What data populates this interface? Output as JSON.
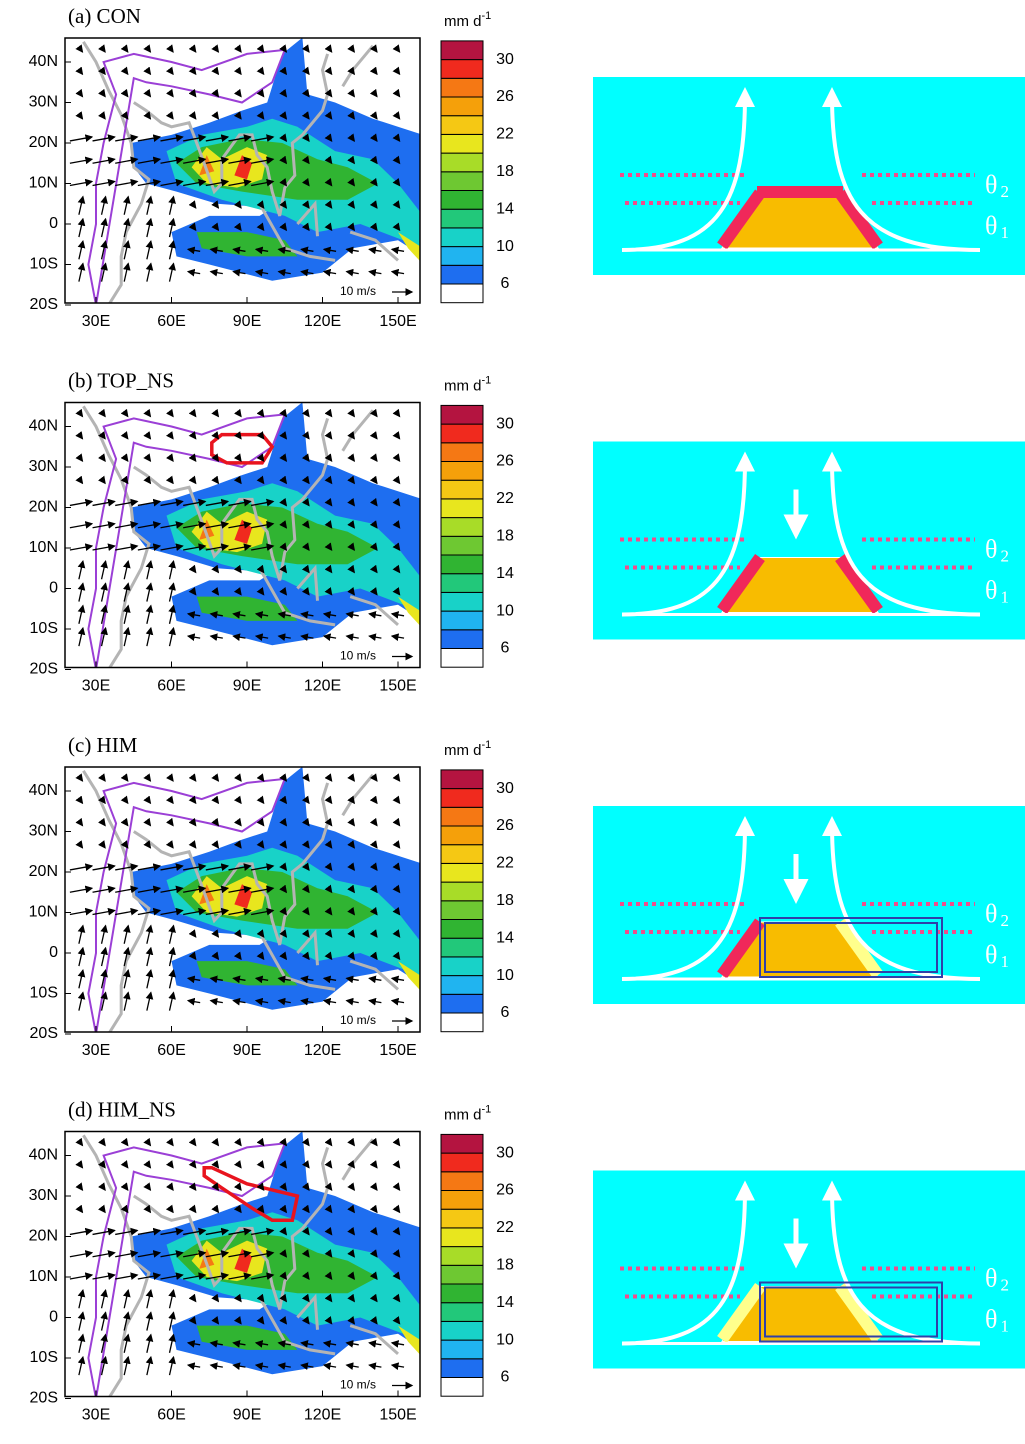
{
  "panels": [
    {
      "label": "(a) CON"
    },
    {
      "label": "(b) TOP_NS"
    },
    {
      "label": "(c) HIM"
    },
    {
      "label": "(d) HIM_NS"
    }
  ],
  "lat_ticks": [
    "40N",
    "30N",
    "20N",
    "10N",
    "0",
    "10S",
    "20S"
  ],
  "lon_ticks": [
    "30E",
    "60E",
    "90E",
    "120E",
    "150E"
  ],
  "vector_reference": "10 m/s",
  "colorbar": {
    "unit": "mm d",
    "unit_exponent": "-1",
    "labels": [
      6,
      10,
      14,
      18,
      22,
      26,
      30
    ],
    "colors": [
      "#ffffff",
      "#1e6ef0",
      "#20b4f0",
      "#18d2c8",
      "#22c87a",
      "#30b432",
      "#6ec832",
      "#a8dc28",
      "#e8e61e",
      "#f5c814",
      "#f5a00a",
      "#f57814",
      "#f02a1e",
      "#b41440"
    ]
  },
  "theta": {
    "symbol": "θ",
    "upper_index": "2",
    "lower_index": "1"
  }
}
